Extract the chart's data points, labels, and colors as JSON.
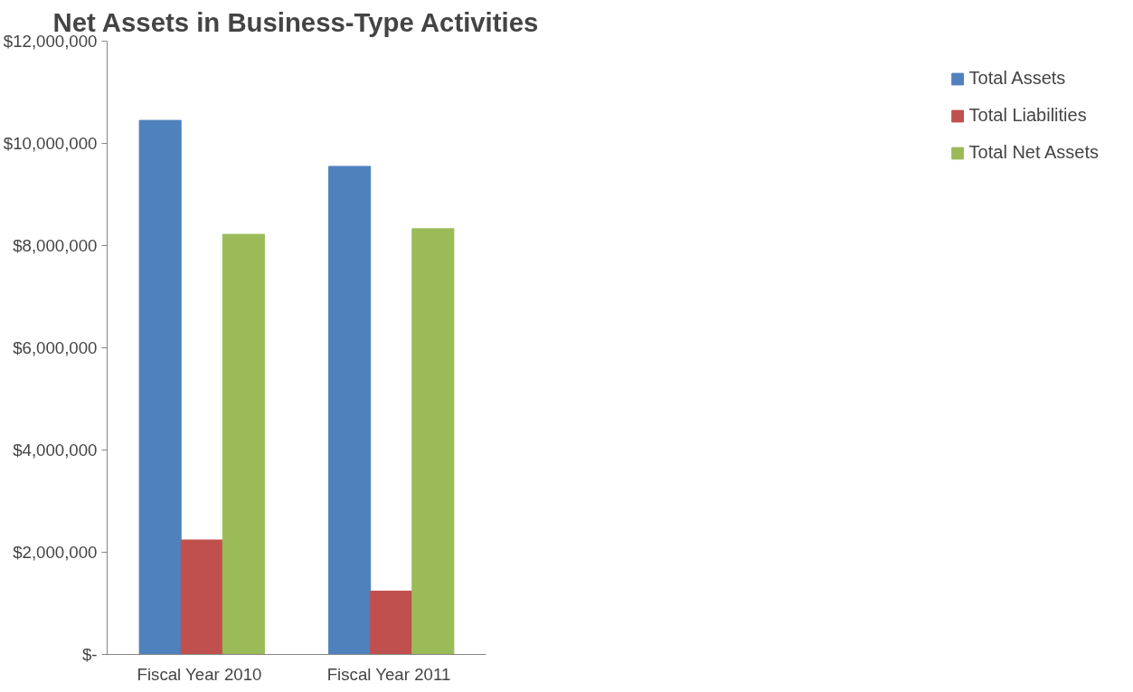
{
  "chart_data": {
    "type": "bar",
    "title": "Net Assets in Business-Type Activities",
    "categories": [
      "Fiscal Year  2010",
      "Fiscal Year  2011"
    ],
    "series": [
      {
        "name": "Total Assets",
        "color": "#4f81bd",
        "values": [
          10450000,
          9550000
        ]
      },
      {
        "name": "Total Liabilities",
        "color": "#c0504d",
        "values": [
          2240000,
          1240000
        ]
      },
      {
        "name": "Total Net Assets",
        "color": "#9bbb59",
        "values": [
          8220000,
          8330000
        ]
      }
    ],
    "ylim": [
      0,
      12000000
    ],
    "yticks": [
      {
        "value": 0,
        "label": "$-"
      },
      {
        "value": 2000000,
        "label": "$2,000,000"
      },
      {
        "value": 4000000,
        "label": "$4,000,000"
      },
      {
        "value": 6000000,
        "label": "$6,000,000"
      },
      {
        "value": 8000000,
        "label": "$8,000,000"
      },
      {
        "value": 10000000,
        "label": "$10,000,000"
      },
      {
        "value": 12000000,
        "label": "$12,000,000"
      }
    ],
    "grid": false,
    "legend": "right"
  }
}
